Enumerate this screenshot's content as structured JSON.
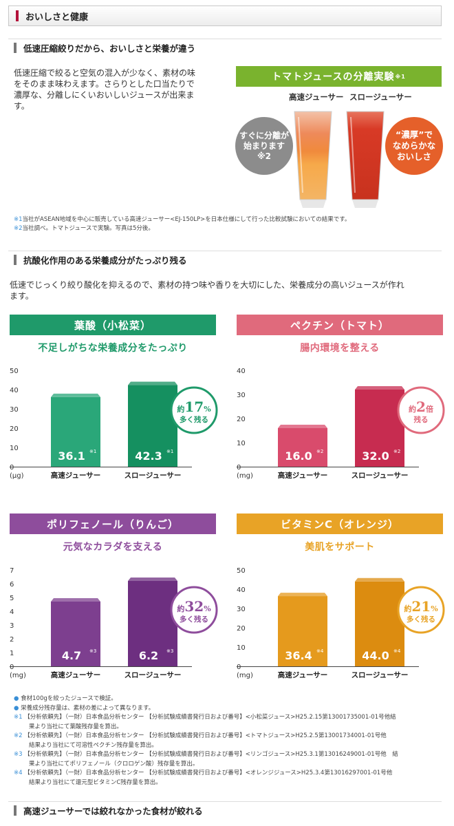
{
  "header": {
    "title": "おいしさと健康"
  },
  "section1": {
    "heading": "低速圧縮絞りだから、おいしさと栄養が違う",
    "body": [
      "低速圧縮で絞ると空気の混入が少なく、素材の味",
      "をそのまま味わえます。さらりとした口当たりで",
      "濃厚な、分離しにくいおいしいジュースが出来ま",
      "す。"
    ],
    "experiment": {
      "banner": "トマトジュースの分離実験",
      "banner_mark": "※1",
      "label_high": "高速ジューサー",
      "label_slow": "スロージューサー",
      "left_circle": [
        "すぐに分離が",
        "始まります",
        "※2"
      ],
      "right_circle": [
        "“濃厚”で",
        "なめらかな",
        "おいしさ"
      ]
    },
    "notes": [
      {
        "mark": "※1",
        "text": "当社がASEAN地域を中心に販売している高速ジューサー<EJ-150LP>を日本仕様にして行った比較試験においての結果です。"
      },
      {
        "mark": "※2",
        "text": "当社調べ。トマトジュースで実験。写真は5分後。"
      }
    ]
  },
  "section2": {
    "heading": "抗酸化作用のある栄養成分がたっぷり残る",
    "body": [
      "低速でじっくり絞り酸化を抑えるので、素材の持つ味や香りを大切にした、栄養成分の高いジュースが作れ",
      "ます。"
    ]
  },
  "panels": [
    {
      "title": "葉酸（小松菜）",
      "subtitle": "不足しがちな栄養成分をたっぷり",
      "color": "#1f9a6a",
      "sub_color": "#1f9a6a",
      "badge_pre": "約",
      "badge_num": "17",
      "badge_unit": "%",
      "badge_sub": "多く残る"
    },
    {
      "title": "ペクチン（トマト）",
      "subtitle": "腸内環境を整える",
      "color": "#e06a7c",
      "sub_color": "#e06a7c",
      "badge_pre": "約",
      "badge_num": "2",
      "badge_unit": "倍",
      "badge_sub": "残る"
    },
    {
      "title": "ポリフェノール（りんご）",
      "subtitle": "元気なカラダを支える",
      "color": "#8e4d9c",
      "sub_color": "#8e4d9c",
      "badge_pre": "約",
      "badge_num": "32",
      "badge_unit": "%",
      "badge_sub": "多く残る"
    },
    {
      "title": "ビタミンC（オレンジ）",
      "subtitle": "美肌をサポート",
      "color": "#e8a326",
      "sub_color": "#e8a326",
      "badge_pre": "約",
      "badge_num": "21",
      "badge_unit": "%",
      "badge_sub": "多く残る"
    }
  ],
  "chart_data": [
    {
      "type": "bar",
      "categories": [
        "高速ジューサー",
        "スロージューサー"
      ],
      "values": [
        36.1,
        42.3
      ],
      "value_marks": [
        "※1",
        "※1"
      ],
      "unit": "(μg)",
      "ylim": [
        0,
        50
      ],
      "yticks": [
        0,
        10,
        20,
        30,
        40,
        50
      ],
      "colors": [
        "#2aa779",
        "#159060"
      ]
    },
    {
      "type": "bar",
      "categories": [
        "高速ジューサー",
        "スロージューサー"
      ],
      "values": [
        16.0,
        32.0
      ],
      "value_marks": [
        "※2",
        "※2"
      ],
      "unit": "(mg)",
      "ylim": [
        0,
        40
      ],
      "yticks": [
        0,
        10,
        20,
        30,
        40
      ],
      "colors": [
        "#d94b6c",
        "#c72c50"
      ]
    },
    {
      "type": "bar",
      "categories": [
        "高速ジューサー",
        "スロージューサー"
      ],
      "values": [
        4.7,
        6.2
      ],
      "value_marks": [
        "※3",
        "※3"
      ],
      "unit": "(mg)",
      "ylim": [
        0,
        7
      ],
      "yticks": [
        0,
        1,
        2,
        3,
        4,
        5,
        6,
        7
      ],
      "colors": [
        "#7d3f8f",
        "#6d2f80"
      ]
    },
    {
      "type": "bar",
      "categories": [
        "高速ジューサー",
        "スロージューサー"
      ],
      "values": [
        36.4,
        44.0
      ],
      "value_marks": [
        "※4",
        "※4"
      ],
      "unit": "(mg)",
      "ylim": [
        0,
        50
      ],
      "yticks": [
        0,
        10,
        20,
        30,
        40,
        50
      ],
      "colors": [
        "#e59a1d",
        "#dc8c10"
      ]
    }
  ],
  "bullets": [
    {
      "mark": "●",
      "text": "食材100gを絞ったジュースで検証。"
    },
    {
      "mark": "●",
      "text": "栄養成分残存量は、素材の差によって異なります。"
    },
    {
      "mark": "※1",
      "text": "【分析依頼先】（一財）日本食品分析センター 【分析試験成績書発行日および番号】<小松菜ジュース>H25.2.15第13001735001-01号他結"
    },
    {
      "mark": "",
      "text": "果より当社にて葉酸残存量を算出。"
    },
    {
      "mark": "※2",
      "text": "【分析依頼先】（一財）日本食品分析センター 【分析試験成績書発行日および番号】<トマトジュース>H25.2.5第13001734001-01号他"
    },
    {
      "mark": "",
      "text": "結果より当社にて可溶性ペクチン残存量を算出。"
    },
    {
      "mark": "※3",
      "text": "【分析依頼先】（一財）日本食品分析センター 【分析試験成績書発行日および番号】<リンゴジュース>H25.3.1第13016249001-01号他　結"
    },
    {
      "mark": "",
      "text": "果より当社にてポリフェノール（クロロゲン酸）残存量を算出。"
    },
    {
      "mark": "※4",
      "text": "【分析依頼先】（一財）日本食品分析センター 【分析試験成績書発行日および番号】<オレンジジュース>H25.3.4第13016297001-01号他"
    },
    {
      "mark": "",
      "text": "結果より当社にて還元型ビタミンC残存量を算出。"
    }
  ],
  "section3": {
    "heading": "高速ジューサーでは絞れなかった食材が絞れる"
  }
}
